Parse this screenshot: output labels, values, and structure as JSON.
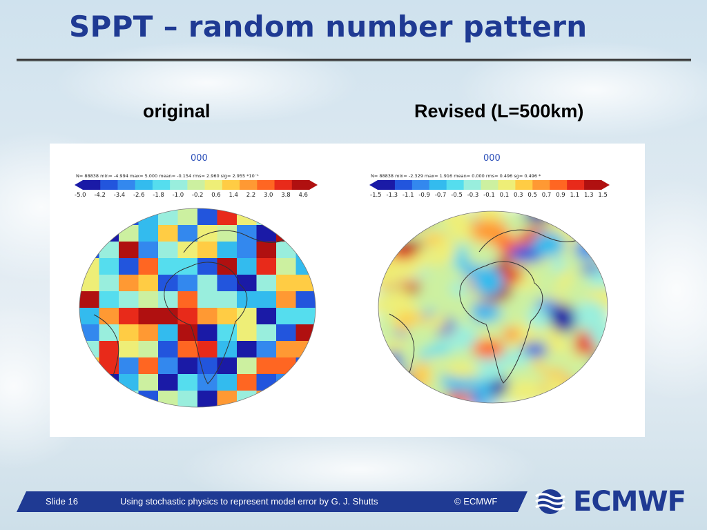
{
  "slide": {
    "title": "SPPT – random number pattern",
    "left_label": "original",
    "right_label": "Revised (L=500km)"
  },
  "left_plot": {
    "id": "000",
    "stats": "N= 88838 min= -4.994 max= 5.000 mean= -0.154 rms= 2.960 sig= 2.955 *10⁻¹",
    "ticks": [
      "-5.0",
      "-4.2",
      "-3.4",
      "-2.6",
      "-1.8",
      "-1.0",
      "-0.2",
      "0.6",
      "1.4",
      "2.2",
      "3.0",
      "3.8",
      "4.6"
    ]
  },
  "right_plot": {
    "id": "000",
    "stats": "N= 88838 min= -2.329 max= 1.916 mean= 0.000 rms= 0.496 sg= 0.496 *",
    "ticks": [
      "-1.5",
      "-1.3",
      "-1.1",
      "-0.9",
      "-0.7",
      "-0.5",
      "-0.3",
      "-0.1",
      "0.1",
      "0.3",
      "0.5",
      "0.7",
      "0.9",
      "1.1",
      "1.3",
      "1.5"
    ]
  },
  "colors": {
    "title": "#1f3a93",
    "footer_bar": "#1f3a93",
    "scale": [
      "#1a1aa6",
      "#2255dd",
      "#3388ee",
      "#33bbee",
      "#55ddee",
      "#99eedd",
      "#ccf0a0",
      "#eeee77",
      "#ffcc44",
      "#ff9933",
      "#ff6622",
      "#e82a1a",
      "#b01010"
    ]
  },
  "footer": {
    "slide_number": "Slide 16",
    "caption": "Using stochastic physics to represent model error  by G. J. Shutts",
    "copyright": "© ECMWF"
  },
  "logo": {
    "text": "ECMWF"
  }
}
